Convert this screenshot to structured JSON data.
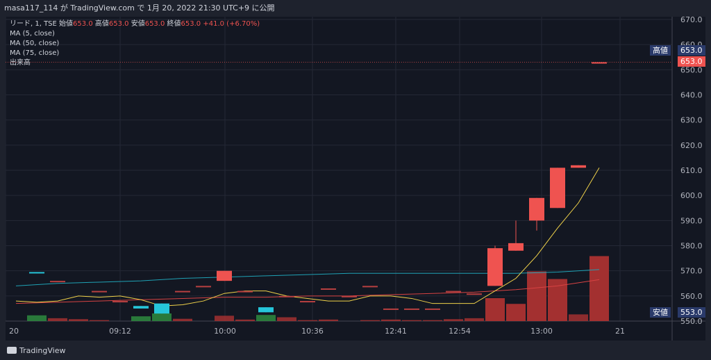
{
  "header": {
    "text": "masa117_114 が TradingView.com で 1月 20, 2022 21:30 UTC+9 に公開"
  },
  "legend": {
    "symbol": "リード, 1, TSE",
    "ohlc": [
      {
        "label": "始値",
        "value": "653.0"
      },
      {
        "label": "高値",
        "value": "653.0"
      },
      {
        "label": "安値",
        "value": "653.0"
      },
      {
        "label": "終値",
        "value": "653.0"
      }
    ],
    "change": "+41.0 (+6.70%)",
    "studies": [
      "MA (5, close)",
      "MA (50, close)",
      "MA (75, close)",
      "出来高"
    ]
  },
  "price_tags": {
    "high_label": "高値",
    "high_value": "653.0",
    "last_value": "653.0",
    "low_label": "安値",
    "low_value": "553.0"
  },
  "footer": {
    "brand": "TradingView"
  },
  "colors": {
    "up": "#ef5350",
    "down": "#26c6da",
    "ma5": "#f0d24a",
    "ma50": "#1fa2b5",
    "ma75": "#d84343"
  },
  "chart_data": {
    "type": "candlestick",
    "ylim": [
      550,
      670
    ],
    "y_ticks": [
      550,
      560,
      570,
      580,
      590,
      600,
      610,
      620,
      630,
      640,
      650,
      660,
      670
    ],
    "x_tick_labels": [
      "20",
      "09:12",
      "10:00",
      "10:36",
      "12:41",
      "12:54",
      "13:00",
      "21"
    ],
    "high_line": 653,
    "candles": [
      {
        "x": 1,
        "o": 569.5,
        "c": 569.0,
        "h": 569.5,
        "l": 569.0,
        "dir": "down"
      },
      {
        "x": 2,
        "o": 566.0,
        "c": 566.0,
        "h": 566.0,
        "l": 566.0,
        "dir": "flat"
      },
      {
        "x": 4,
        "o": 562.0,
        "c": 562.0,
        "h": 562.0,
        "l": 562.0,
        "dir": "flat"
      },
      {
        "x": 5,
        "o": 558.0,
        "c": 558.0,
        "h": 558.0,
        "l": 558.0,
        "dir": "flat"
      },
      {
        "x": 6,
        "o": 556.0,
        "c": 555.0,
        "h": 556.0,
        "l": 555.0,
        "dir": "down"
      },
      {
        "x": 7,
        "o": 557.0,
        "c": 553.0,
        "h": 557.0,
        "l": 553.0,
        "dir": "down"
      },
      {
        "x": 8,
        "o": 562.0,
        "c": 562.0,
        "h": 562.0,
        "l": 562.0,
        "dir": "flat"
      },
      {
        "x": 9,
        "o": 564.0,
        "c": 564.0,
        "h": 564.0,
        "l": 564.0,
        "dir": "flat"
      },
      {
        "x": 10,
        "o": 566.0,
        "c": 570.0,
        "h": 570.0,
        "l": 566.0,
        "dir": "up"
      },
      {
        "x": 11,
        "o": 562.0,
        "c": 562.0,
        "h": 562.0,
        "l": 562.0,
        "dir": "flat"
      },
      {
        "x": 12,
        "o": 555.5,
        "c": 553.5,
        "h": 555.5,
        "l": 553.5,
        "dir": "down"
      },
      {
        "x": 13,
        "o": 560.0,
        "c": 560.0,
        "h": 560.0,
        "l": 560.0,
        "dir": "flat"
      },
      {
        "x": 14,
        "o": 558.0,
        "c": 558.0,
        "h": 558.0,
        "l": 558.0,
        "dir": "flat"
      },
      {
        "x": 15,
        "o": 563.0,
        "c": 563.0,
        "h": 563.0,
        "l": 563.0,
        "dir": "flat"
      },
      {
        "x": 16,
        "o": 560.0,
        "c": 560.0,
        "h": 560.0,
        "l": 560.0,
        "dir": "flat"
      },
      {
        "x": 17,
        "o": 564.0,
        "c": 564.0,
        "h": 564.0,
        "l": 564.0,
        "dir": "flat"
      },
      {
        "x": 18,
        "o": 555.0,
        "c": 555.0,
        "h": 555.0,
        "l": 555.0,
        "dir": "flat"
      },
      {
        "x": 19,
        "o": 555.0,
        "c": 555.0,
        "h": 555.0,
        "l": 555.0,
        "dir": "flat"
      },
      {
        "x": 20,
        "o": 555.0,
        "c": 555.0,
        "h": 555.0,
        "l": 555.0,
        "dir": "flat"
      },
      {
        "x": 21,
        "o": 562.0,
        "c": 562.0,
        "h": 562.0,
        "l": 562.0,
        "dir": "flat"
      },
      {
        "x": 22,
        "o": 561.0,
        "c": 561.0,
        "h": 561.0,
        "l": 561.0,
        "dir": "flat"
      },
      {
        "x": 23,
        "o": 564.0,
        "c": 579.0,
        "h": 580.0,
        "l": 564.0,
        "dir": "up"
      },
      {
        "x": 24,
        "o": 578.0,
        "c": 581.0,
        "h": 590.0,
        "l": 578.0,
        "dir": "up"
      },
      {
        "x": 25,
        "o": 590.0,
        "c": 599.0,
        "h": 599.0,
        "l": 586.0,
        "dir": "up"
      },
      {
        "x": 26,
        "o": 595.0,
        "c": 611.0,
        "h": 611.0,
        "l": 595.0,
        "dir": "up"
      },
      {
        "x": 27,
        "o": 611.0,
        "c": 612.0,
        "h": 612.0,
        "l": 611.0,
        "dir": "up"
      },
      {
        "x": 28,
        "o": 653.0,
        "c": 653.0,
        "h": 653.0,
        "l": 653.0,
        "dir": "up"
      }
    ],
    "volume": [
      {
        "x": 1,
        "v": 3,
        "dir": "down"
      },
      {
        "x": 2,
        "v": 1.5,
        "dir": "up"
      },
      {
        "x": 3,
        "v": 1,
        "dir": "up"
      },
      {
        "x": 4,
        "v": 0.5,
        "dir": "up"
      },
      {
        "x": 6,
        "v": 2.5,
        "dir": "down"
      },
      {
        "x": 7,
        "v": 4,
        "dir": "down"
      },
      {
        "x": 8,
        "v": 1.2,
        "dir": "up"
      },
      {
        "x": 10,
        "v": 2.8,
        "dir": "up"
      },
      {
        "x": 11,
        "v": 0.8,
        "dir": "up"
      },
      {
        "x": 12,
        "v": 3.2,
        "dir": "down"
      },
      {
        "x": 13,
        "v": 2,
        "dir": "up"
      },
      {
        "x": 14,
        "v": 0.5,
        "dir": "up"
      },
      {
        "x": 15,
        "v": 0.8,
        "dir": "up"
      },
      {
        "x": 17,
        "v": 0.5,
        "dir": "up"
      },
      {
        "x": 18,
        "v": 0.8,
        "dir": "up"
      },
      {
        "x": 19,
        "v": 0.5,
        "dir": "up"
      },
      {
        "x": 20,
        "v": 0.5,
        "dir": "up"
      },
      {
        "x": 21,
        "v": 1,
        "dir": "up"
      },
      {
        "x": 22,
        "v": 1.5,
        "dir": "up"
      },
      {
        "x": 23,
        "v": 12,
        "dir": "up"
      },
      {
        "x": 24,
        "v": 9,
        "dir": "up"
      },
      {
        "x": 25,
        "v": 26,
        "dir": "up"
      },
      {
        "x": 26,
        "v": 22,
        "dir": "up"
      },
      {
        "x": 27,
        "v": 3.5,
        "dir": "up"
      },
      {
        "x": 28,
        "v": 34,
        "dir": "up"
      }
    ],
    "ma5": [
      [
        0,
        558
      ],
      [
        1,
        557.5
      ],
      [
        2,
        558
      ],
      [
        3,
        560
      ],
      [
        4,
        559.5
      ],
      [
        5,
        560
      ],
      [
        6,
        558.5
      ],
      [
        7,
        556
      ],
      [
        8,
        556.5
      ],
      [
        9,
        558
      ],
      [
        10,
        561
      ],
      [
        11,
        562
      ],
      [
        12,
        562
      ],
      [
        13,
        560
      ],
      [
        14,
        559
      ],
      [
        15,
        558
      ],
      [
        16,
        558
      ],
      [
        17,
        560
      ],
      [
        18,
        560
      ],
      [
        19,
        559
      ],
      [
        20,
        557
      ],
      [
        21,
        557
      ],
      [
        22,
        557
      ],
      [
        23,
        562
      ],
      [
        24,
        567
      ],
      [
        25,
        576
      ],
      [
        26,
        587
      ],
      [
        27,
        597
      ],
      [
        28,
        611
      ]
    ],
    "ma50": [
      [
        0,
        564
      ],
      [
        2,
        565
      ],
      [
        4,
        565.5
      ],
      [
        6,
        566
      ],
      [
        8,
        567
      ],
      [
        10,
        567.5
      ],
      [
        12,
        568
      ],
      [
        14,
        568.5
      ],
      [
        16,
        569
      ],
      [
        18,
        569
      ],
      [
        20,
        569
      ],
      [
        22,
        569
      ],
      [
        24,
        569
      ],
      [
        26,
        569.5
      ],
      [
        28,
        570.5
      ]
    ],
    "ma75": [
      [
        0,
        557
      ],
      [
        2,
        557.5
      ],
      [
        4,
        558
      ],
      [
        6,
        558.5
      ],
      [
        8,
        559
      ],
      [
        10,
        559.5
      ],
      [
        12,
        559.5
      ],
      [
        14,
        560
      ],
      [
        16,
        560
      ],
      [
        18,
        560.5
      ],
      [
        20,
        561
      ],
      [
        22,
        561.5
      ],
      [
        24,
        562.5
      ],
      [
        26,
        564
      ],
      [
        28,
        566.5
      ]
    ]
  }
}
